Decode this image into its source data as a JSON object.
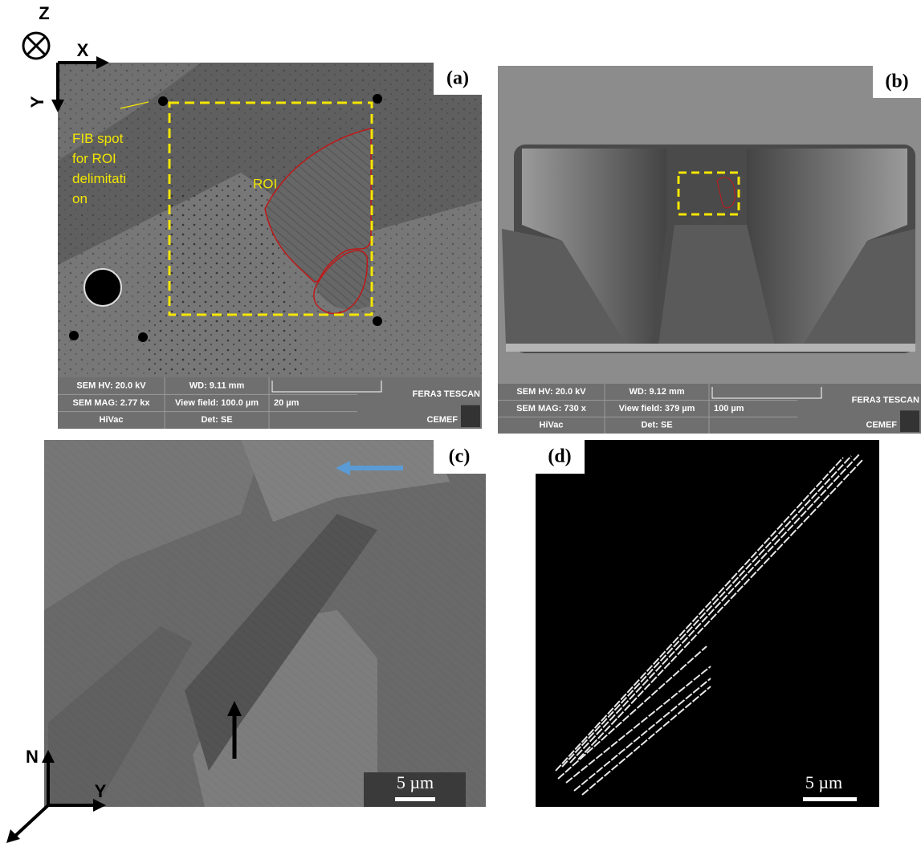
{
  "panels": [
    {
      "label": "(a)",
      "axes": {
        "z": "Z",
        "x": "X",
        "y": "Y"
      },
      "annotation": [
        "FIB spot",
        "for ROI",
        "delimitati",
        "on"
      ],
      "roi": "ROI",
      "info": {
        "hv": "SEM HV: 20.0 kV",
        "wd": "WD: 9.11 mm",
        "mag": "SEM MAG: 2.77 kx",
        "field": "View field: 100.0 µm",
        "scale": "20 µm",
        "vac": "HiVac",
        "det": "Det: SE",
        "brand": "FERA3 TESCAN",
        "lab": "CEMEF"
      }
    },
    {
      "label": "(b)",
      "info": {
        "hv": "SEM HV: 20.0 kV",
        "wd": "WD: 9.12 mm",
        "mag": "SEM MAG: 730 x",
        "field": "View field: 379 µm",
        "scale": "100 µm",
        "vac": "HiVac",
        "det": "Det: SE",
        "brand": "FERA3 TESCAN",
        "lab": "CEMEF"
      }
    },
    {
      "label": "(c)",
      "scale": "5 µm",
      "axes": {
        "n": "N",
        "y": "Y"
      }
    },
    {
      "label": "(d)",
      "scale": "5 µm"
    }
  ]
}
